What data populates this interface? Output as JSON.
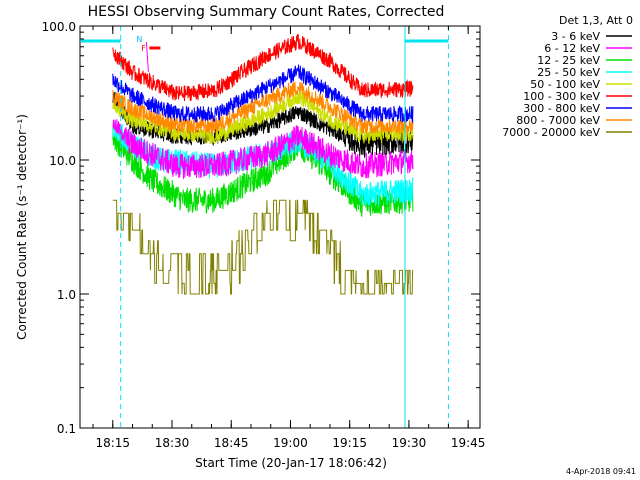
{
  "chart_data": {
    "type": "line",
    "title": "HESSI Observing Summary Count Rates, Corrected",
    "xlabel": "Start Time (20-Jan-17 18:06:42)",
    "ylabel": "Corrected Count Rate (s⁻¹ detector⁻¹)",
    "y_scale": "log",
    "ylim": [
      0.1,
      100.0
    ],
    "xlim": [
      "18:06:42",
      "19:48:00"
    ],
    "x_ticks": [
      "18:15",
      "18:30",
      "18:45",
      "19:00",
      "19:15",
      "19:30",
      "19:45"
    ],
    "y_ticks": [
      "0.1",
      "1.0",
      "10.0",
      "100.0"
    ],
    "legend_title": "Det 1,3, Att 0",
    "legend_position": "right-outside",
    "data_start": "18:15",
    "data_end": "19:31",
    "night_boundaries": [
      "18:06:42",
      "19:29"
    ],
    "saa_boundaries": [
      "18:17",
      "19:40"
    ],
    "flag_labels": [
      "N",
      "F"
    ],
    "series": [
      {
        "name": "3 - 6 keV",
        "color": "#000000",
        "keypoints": [
          [
            0,
            30
          ],
          [
            5,
            18
          ],
          [
            16,
            15
          ],
          [
            26,
            15
          ],
          [
            39,
            18
          ],
          [
            47,
            23
          ],
          [
            55,
            17
          ],
          [
            63,
            13
          ],
          [
            76,
            14
          ]
        ]
      },
      {
        "name": "6 - 12 keV",
        "color": "#ff00ff",
        "keypoints": [
          [
            0,
            19
          ],
          [
            5,
            13
          ],
          [
            16,
            9
          ],
          [
            26,
            9
          ],
          [
            39,
            11
          ],
          [
            47,
            15
          ],
          [
            55,
            11
          ],
          [
            63,
            9
          ],
          [
            76,
            10
          ]
        ]
      },
      {
        "name": "12 - 25 keV",
        "color": "#00dd00",
        "keypoints": [
          [
            0,
            15
          ],
          [
            5,
            10
          ],
          [
            10,
            7
          ],
          [
            18,
            5
          ],
          [
            26,
            5
          ],
          [
            39,
            8
          ],
          [
            47,
            13
          ],
          [
            55,
            8
          ],
          [
            63,
            4.7
          ],
          [
            76,
            5
          ]
        ]
      },
      {
        "name": "25 - 50 keV",
        "color": "#00ffff",
        "keypoints": [
          [
            0,
            17
          ],
          [
            5,
            13
          ],
          [
            12,
            10
          ],
          [
            26,
            9
          ],
          [
            39,
            11
          ],
          [
            47,
            14
          ],
          [
            55,
            9.5
          ],
          [
            63,
            5.5
          ],
          [
            76,
            6
          ]
        ]
      },
      {
        "name": "50 - 100 keV",
        "color": "#ccdd00",
        "keypoints": [
          [
            0,
            26
          ],
          [
            5,
            20
          ],
          [
            16,
            16
          ],
          [
            26,
            15
          ],
          [
            39,
            22
          ],
          [
            47,
            30
          ],
          [
            55,
            20
          ],
          [
            63,
            15
          ],
          [
            76,
            16
          ]
        ]
      },
      {
        "name": "100 - 300 keV",
        "color": "#ff0000",
        "keypoints": [
          [
            0,
            65
          ],
          [
            5,
            45
          ],
          [
            16,
            31
          ],
          [
            26,
            33
          ],
          [
            39,
            60
          ],
          [
            47,
            77
          ],
          [
            55,
            55
          ],
          [
            63,
            33
          ],
          [
            76,
            34
          ]
        ]
      },
      {
        "name": "300 - 800 keV",
        "color": "#0000ff",
        "keypoints": [
          [
            0,
            40
          ],
          [
            5,
            30
          ],
          [
            16,
            22
          ],
          [
            26,
            22
          ],
          [
            39,
            35
          ],
          [
            47,
            45
          ],
          [
            55,
            32
          ],
          [
            63,
            22
          ],
          [
            76,
            22
          ]
        ]
      },
      {
        "name": "800 - 7000 keV",
        "color": "#ff8800",
        "keypoints": [
          [
            0,
            30
          ],
          [
            5,
            24
          ],
          [
            16,
            18
          ],
          [
            26,
            18
          ],
          [
            39,
            28
          ],
          [
            47,
            35
          ],
          [
            55,
            25
          ],
          [
            63,
            18
          ],
          [
            76,
            18
          ]
        ]
      },
      {
        "name": "7000 - 20000 keV",
        "color": "#808000",
        "keypoints": [
          [
            0,
            4.5
          ],
          [
            5,
            3
          ],
          [
            10,
            1.8
          ],
          [
            20,
            1.3
          ],
          [
            30,
            1.6
          ],
          [
            39,
            3.5
          ],
          [
            47,
            4.5
          ],
          [
            55,
            2.5
          ],
          [
            60,
            1.1
          ],
          [
            76,
            1.3
          ]
        ]
      }
    ]
  },
  "footer": {
    "timestamp": "4-Apr-2018 09:41"
  }
}
